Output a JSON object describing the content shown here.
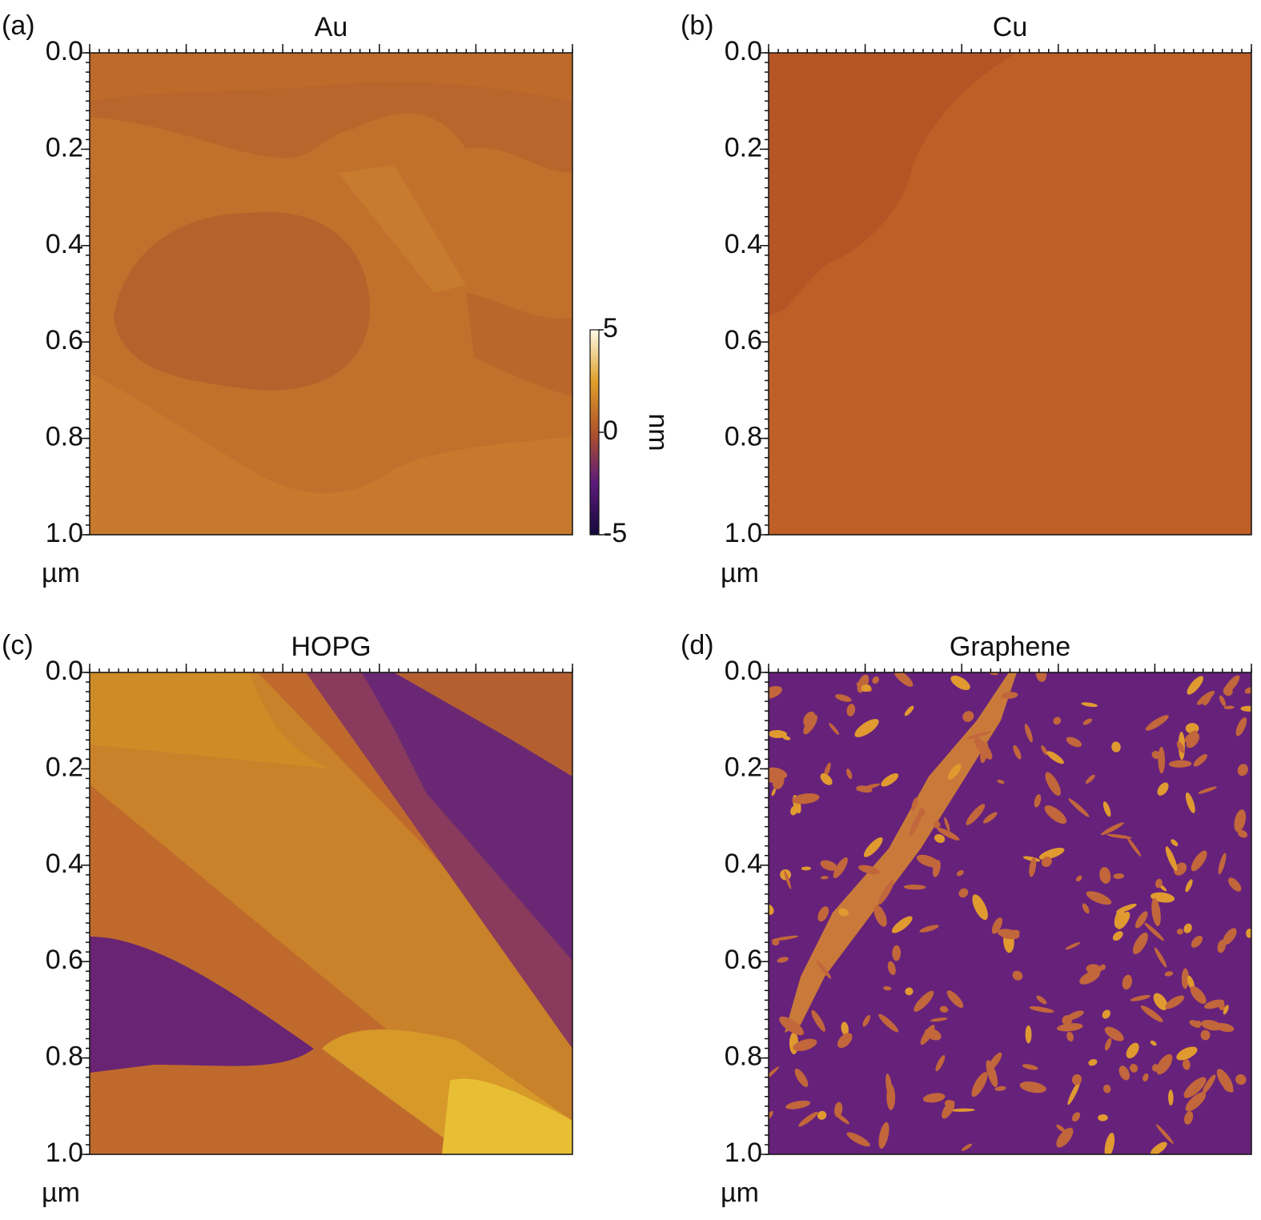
{
  "chart_data": [
    {
      "type": "image",
      "label": "(a)",
      "title": "Au",
      "ylabel": "µm",
      "ylim": [
        0,
        1
      ],
      "yticks": [
        {
          "value": 0,
          "label": "0.0"
        },
        0.2,
        0.4,
        0.6,
        0.8,
        {
          "value": 1,
          "label": "1.0"
        }
      ],
      "colorbar": {
        "label": "nm",
        "clim": [
          -5,
          5
        ],
        "ticks": [
          -5,
          0,
          5
        ],
        "colors": [
          "#14093a",
          "#5c1a7c",
          "#b0532a",
          "#e0a02a",
          "#fffbe8"
        ]
      }
    },
    {
      "type": "image",
      "label": "(b)",
      "title": "Cu",
      "ylabel": "µm",
      "ylim": [
        0,
        1
      ],
      "yticks": [
        {
          "value": 0,
          "label": "0.0"
        },
        0.2,
        0.4,
        0.6,
        0.8,
        {
          "value": 1,
          "label": "1.0"
        }
      ]
    },
    {
      "type": "image",
      "label": "(c)",
      "title": "HOPG",
      "ylabel": "µm",
      "ylim": [
        0,
        1
      ],
      "yticks": [
        {
          "value": 0,
          "label": "0.0"
        },
        0.2,
        0.4,
        0.6,
        0.8,
        {
          "value": 1,
          "label": "1.0"
        }
      ]
    },
    {
      "type": "image",
      "label": "(d)",
      "title": "Graphene",
      "ylabel": "µm",
      "ylim": [
        0,
        1
      ],
      "yticks": [
        {
          "value": 0,
          "label": "0.0"
        },
        0.2,
        0.4,
        0.6,
        0.8,
        {
          "value": 1,
          "label": "1.0"
        }
      ]
    }
  ]
}
